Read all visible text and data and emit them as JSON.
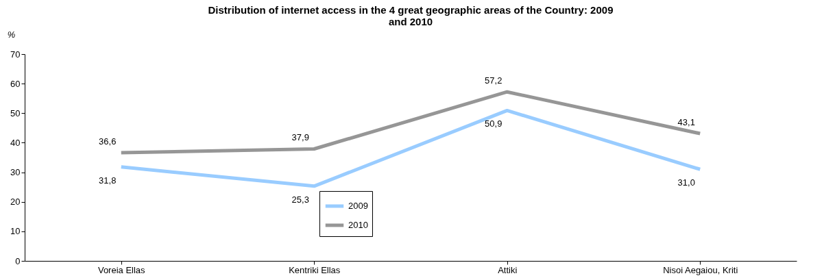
{
  "chart_data": {
    "type": "line",
    "title": "Distribution of internet access in the 4 great geographic areas of the Country: 2009 and 2010",
    "ylabel": "%",
    "categories": [
      "Voreia Ellas",
      "Kentriki Ellas",
      "Attiki",
      "Nisoi Aegaiou, Kriti"
    ],
    "series": [
      {
        "name": "2009",
        "color": "#99ccff",
        "values": [
          31.8,
          25.3,
          50.9,
          31.0
        ],
        "value_labels": [
          "31,8",
          "25,3",
          "50,9",
          "31,0"
        ]
      },
      {
        "name": "2010",
        "color": "#969696",
        "values": [
          36.6,
          37.9,
          57.2,
          43.1
        ],
        "value_labels": [
          "36,6",
          "37,9",
          "57,2",
          "43,1"
        ]
      }
    ],
    "ylim": [
      0,
      70
    ],
    "yticks": [
      0,
      10,
      20,
      30,
      40,
      50,
      60,
      70
    ],
    "grid": false,
    "legend": "bottom",
    "marker": "none",
    "line_style": "solid"
  }
}
